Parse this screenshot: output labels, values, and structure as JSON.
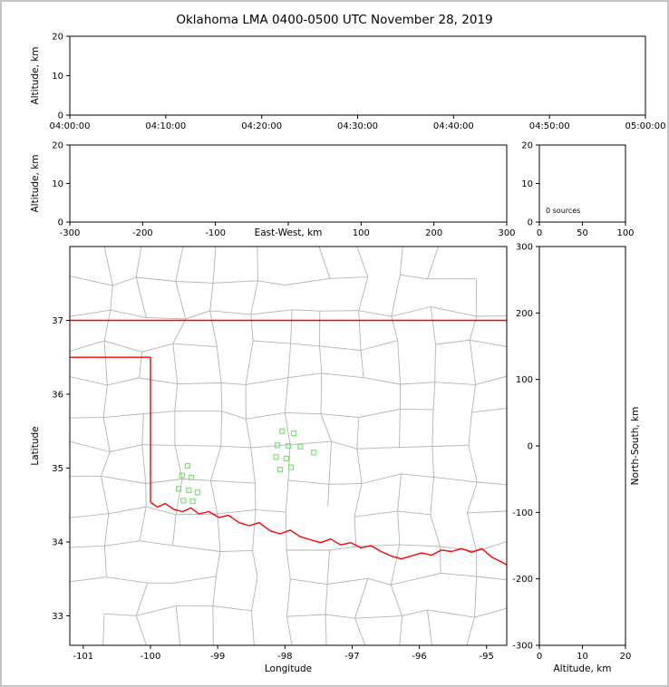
{
  "title": "Oklahoma LMA 0400-0500 UTC November 28, 2019",
  "colors": {
    "background": "#ffffff",
    "frame_border": "#c4c4c4",
    "axis": "#000000",
    "tick_text": "#000000",
    "county_line": "#b3b3b3",
    "state_line": "#ff0000",
    "station_marker": "#7de07d"
  },
  "chart_data": [
    {
      "id": "time_height",
      "type": "scatter",
      "xlabel": "",
      "ylabel": "Altitude, km",
      "xlim": [
        0,
        3600
      ],
      "ylim": [
        0,
        20
      ],
      "xticks": [
        0,
        600,
        1200,
        1800,
        2400,
        3000,
        3600
      ],
      "xtick_labels": [
        "04:00:00",
        "04:10:00",
        "04:20:00",
        "04:30:00",
        "04:40:00",
        "04:50:00",
        "05:00:00"
      ],
      "yticks": [
        0,
        10,
        20
      ],
      "points": []
    },
    {
      "id": "ew_height",
      "type": "scatter",
      "xlabel": "East-West, km",
      "ylabel": "Altitude, km",
      "xlim": [
        -300,
        300
      ],
      "ylim": [
        0,
        20
      ],
      "xticks": [
        -300,
        -200,
        -100,
        0,
        100,
        200,
        300
      ],
      "xtick_labels": [
        "-300",
        "-200",
        "-100",
        null,
        "100",
        "200",
        "300"
      ],
      "yticks": [
        0,
        10,
        20
      ],
      "points": []
    },
    {
      "id": "alt_hist",
      "type": "bar",
      "annotation": "0 sources",
      "xlim": [
        0,
        100
      ],
      "ylim": [
        0,
        20
      ],
      "xticks": [
        0,
        50,
        100
      ],
      "xtick_labels": [
        "0",
        "50",
        "100"
      ],
      "yticks": [
        0,
        10,
        20
      ],
      "values": []
    },
    {
      "id": "plan_view",
      "type": "map-scatter",
      "xlabel": "Longitude",
      "ylabel": "Latitude",
      "xlim": [
        -101.2,
        -94.7
      ],
      "ylim": [
        32.6,
        38.0
      ],
      "xticks": [
        -101,
        -100,
        -99,
        -98,
        -97,
        -96,
        -95
      ],
      "yticks": [
        33,
        34,
        35,
        36,
        37
      ],
      "stations": [
        [
          -99.45,
          35.03
        ],
        [
          -99.53,
          34.9
        ],
        [
          -99.39,
          34.87
        ],
        [
          -99.58,
          34.72
        ],
        [
          -99.43,
          34.7
        ],
        [
          -99.51,
          34.56
        ],
        [
          -99.37,
          34.55
        ],
        [
          -99.3,
          34.67
        ],
        [
          -98.04,
          35.5
        ],
        [
          -97.87,
          35.47
        ],
        [
          -98.11,
          35.31
        ],
        [
          -97.95,
          35.3
        ],
        [
          -97.77,
          35.29
        ],
        [
          -98.13,
          35.15
        ],
        [
          -97.98,
          35.13
        ],
        [
          -98.07,
          34.98
        ],
        [
          -97.91,
          35.01
        ],
        [
          -97.57,
          35.21
        ]
      ],
      "state_border": {
        "north": [
          [
            -101.2,
            37.0
          ],
          [
            -94.7,
            37.0
          ]
        ],
        "panhandle": [
          [
            -101.2,
            36.5
          ],
          [
            -100.0,
            36.5
          ],
          [
            -100.0,
            34.54
          ]
        ],
        "red_river": [
          [
            -100.0,
            34.54
          ],
          [
            -99.9,
            34.47
          ],
          [
            -99.78,
            34.52
          ],
          [
            -99.65,
            34.44
          ],
          [
            -99.52,
            34.41
          ],
          [
            -99.4,
            34.46
          ],
          [
            -99.28,
            34.38
          ],
          [
            -99.13,
            34.41
          ],
          [
            -98.98,
            34.33
          ],
          [
            -98.84,
            34.36
          ],
          [
            -98.68,
            34.26
          ],
          [
            -98.53,
            34.22
          ],
          [
            -98.38,
            34.26
          ],
          [
            -98.22,
            34.15
          ],
          [
            -98.07,
            34.11
          ],
          [
            -97.92,
            34.16
          ],
          [
            -97.77,
            34.07
          ],
          [
            -97.62,
            34.03
          ],
          [
            -97.47,
            33.99
          ],
          [
            -97.32,
            34.04
          ],
          [
            -97.17,
            33.96
          ],
          [
            -97.02,
            33.99
          ],
          [
            -96.87,
            33.92
          ],
          [
            -96.72,
            33.95
          ],
          [
            -96.57,
            33.87
          ],
          [
            -96.42,
            33.81
          ],
          [
            -96.27,
            33.77
          ],
          [
            -96.12,
            33.81
          ],
          [
            -95.97,
            33.85
          ],
          [
            -95.82,
            33.82
          ],
          [
            -95.67,
            33.89
          ],
          [
            -95.52,
            33.87
          ],
          [
            -95.37,
            33.91
          ],
          [
            -95.22,
            33.86
          ],
          [
            -95.07,
            33.91
          ],
          [
            -94.92,
            33.79
          ],
          [
            -94.8,
            33.74
          ],
          [
            -94.7,
            33.69
          ]
        ]
      },
      "county_grid": {
        "cell_lon": 0.54,
        "cell_lat": 0.45,
        "jitter": 0.38,
        "skip": 0.12,
        "seed": 11
      }
    },
    {
      "id": "ns_height",
      "type": "scatter",
      "xlabel": "Altitude, km",
      "ylabel": "North-South, km",
      "xlim": [
        0,
        20
      ],
      "ylim": [
        -300,
        300
      ],
      "xticks": [
        0,
        10,
        20
      ],
      "yticks": [
        -300,
        -200,
        -100,
        0,
        100,
        200,
        300
      ],
      "points": []
    }
  ]
}
